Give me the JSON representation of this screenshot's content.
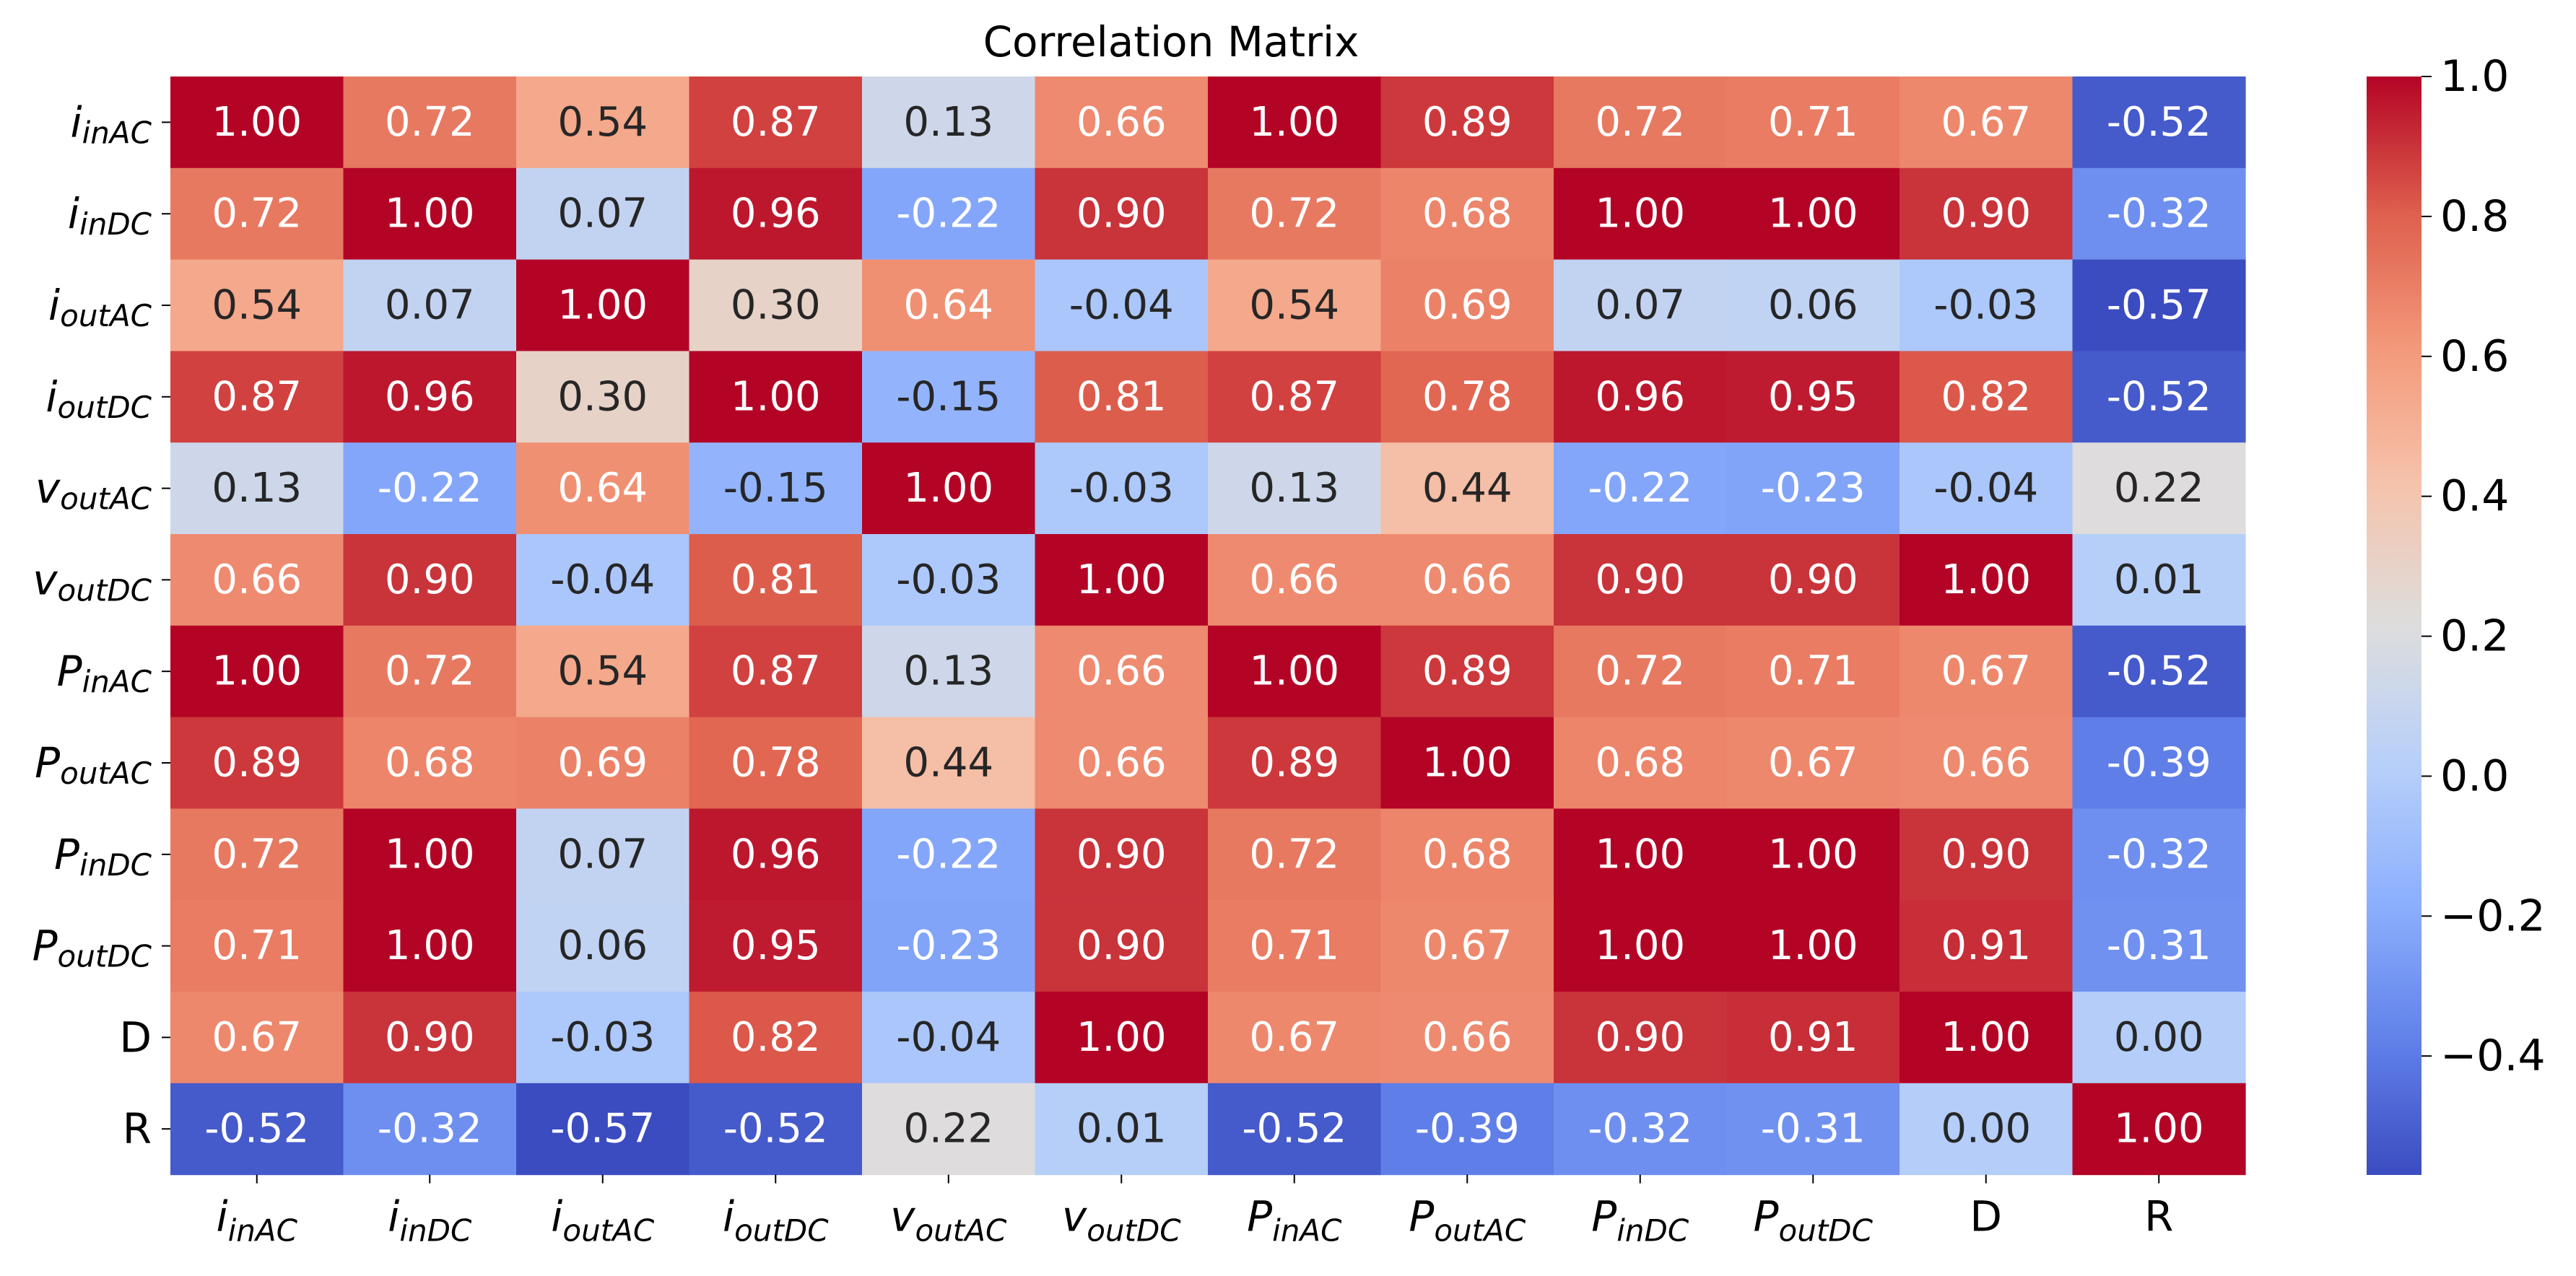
{
  "chart_data": {
    "type": "heatmap",
    "title": "Correlation Matrix",
    "xlabel": "",
    "ylabel": "",
    "labels": [
      {
        "base": "i",
        "sub": "inAC"
      },
      {
        "base": "i",
        "sub": "inDC"
      },
      {
        "base": "i",
        "sub": "outAC"
      },
      {
        "base": "i",
        "sub": "outDC"
      },
      {
        "base": "v",
        "sub": "outAC"
      },
      {
        "base": "v",
        "sub": "outDC"
      },
      {
        "base": "P",
        "sub": "inAC"
      },
      {
        "base": "P",
        "sub": "outAC"
      },
      {
        "base": "P",
        "sub": "inDC"
      },
      {
        "base": "P",
        "sub": "outDC"
      },
      {
        "base": "D",
        "sub": ""
      },
      {
        "base": "R",
        "sub": ""
      }
    ],
    "values": [
      [
        1.0,
        0.72,
        0.54,
        0.87,
        0.13,
        0.66,
        1.0,
        0.89,
        0.72,
        0.71,
        0.67,
        -0.52
      ],
      [
        0.72,
        1.0,
        0.07,
        0.96,
        -0.22,
        0.9,
        0.72,
        0.68,
        1.0,
        1.0,
        0.9,
        -0.32
      ],
      [
        0.54,
        0.07,
        1.0,
        0.3,
        0.64,
        -0.04,
        0.54,
        0.69,
        0.07,
        0.06,
        -0.03,
        -0.57
      ],
      [
        0.87,
        0.96,
        0.3,
        1.0,
        -0.15,
        0.81,
        0.87,
        0.78,
        0.96,
        0.95,
        0.82,
        -0.52
      ],
      [
        0.13,
        -0.22,
        0.64,
        -0.15,
        1.0,
        -0.03,
        0.13,
        0.44,
        -0.22,
        -0.23,
        -0.04,
        0.22
      ],
      [
        0.66,
        0.9,
        -0.04,
        0.81,
        -0.03,
        1.0,
        0.66,
        0.66,
        0.9,
        0.9,
        1.0,
        0.01
      ],
      [
        1.0,
        0.72,
        0.54,
        0.87,
        0.13,
        0.66,
        1.0,
        0.89,
        0.72,
        0.71,
        0.67,
        -0.52
      ],
      [
        0.89,
        0.68,
        0.69,
        0.78,
        0.44,
        0.66,
        0.89,
        1.0,
        0.68,
        0.67,
        0.66,
        -0.39
      ],
      [
        0.72,
        1.0,
        0.07,
        0.96,
        -0.22,
        0.9,
        0.72,
        0.68,
        1.0,
        1.0,
        0.9,
        -0.32
      ],
      [
        0.71,
        1.0,
        0.06,
        0.95,
        -0.23,
        0.9,
        0.71,
        0.67,
        1.0,
        1.0,
        0.91,
        -0.31
      ],
      [
        0.67,
        0.9,
        -0.03,
        0.82,
        -0.04,
        1.0,
        0.67,
        0.66,
        0.9,
        0.91,
        1.0,
        0.0
      ],
      [
        -0.52,
        -0.32,
        -0.57,
        -0.52,
        0.22,
        0.01,
        -0.52,
        -0.39,
        -0.32,
        -0.31,
        0.0,
        1.0
      ]
    ],
    "value_format_decimals": 2,
    "colormap": "coolwarm",
    "vmin": -0.57,
    "vmax": 1.0,
    "colorbar": {
      "ticks": [
        -0.4,
        -0.2,
        0.0,
        0.2,
        0.4,
        0.6,
        0.8,
        1.0
      ],
      "tick_labels": [
        "−0.4",
        "−0.2",
        "0.0",
        "0.2",
        "0.4",
        "0.6",
        "0.8",
        "1.0"
      ]
    },
    "annotation_colors": {
      "light": "#ffffff",
      "dark": "#262626"
    }
  }
}
